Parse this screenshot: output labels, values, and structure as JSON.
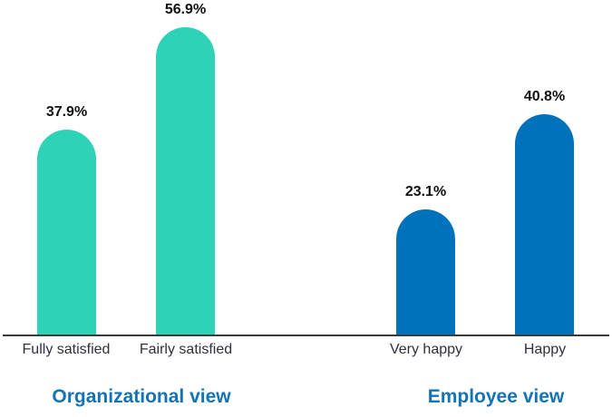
{
  "chart_data": {
    "type": "bar",
    "title": "",
    "categories": [
      "Fully satisfied",
      "Fairly satisfied",
      "Very happy",
      "Happy"
    ],
    "values": [
      37.9,
      56.9,
      23.1,
      40.8
    ],
    "value_labels": [
      "37.9%",
      "56.9%",
      "23.1%",
      "40.8%"
    ],
    "ylim": [
      0,
      60
    ],
    "grid": false,
    "legend": false,
    "axis": "x-baseline-only",
    "bar_style": "rounded-top",
    "groups": [
      {
        "title": "Organizational view",
        "categories": [
          "Fully satisfied",
          "Fairly satisfied"
        ],
        "values": [
          37.9,
          56.9
        ],
        "value_labels": [
          "37.9%",
          "56.9%"
        ],
        "bar_color": "#2ed3b7"
      },
      {
        "title": "Employee view",
        "categories": [
          "Very happy",
          "Happy"
        ],
        "values": [
          23.1,
          40.8
        ],
        "value_labels": [
          "23.1%",
          "40.8%"
        ],
        "bar_color": "#0072bc"
      }
    ]
  },
  "bars": [
    {
      "label": "Fully satisfied",
      "value": 37.9,
      "value_label": "37.9%",
      "group": 0
    },
    {
      "label": "Fairly satisfied",
      "value": 56.9,
      "value_label": "56.9%",
      "group": 0
    },
    {
      "label": "Very happy",
      "value": 23.1,
      "value_label": "23.1%",
      "group": 1
    },
    {
      "label": "Happy",
      "value": 40.8,
      "value_label": "40.8%",
      "group": 1
    }
  ],
  "colors": {
    "teal_bar": "#2ed3b7",
    "blue_bar": "#0072bc",
    "group_title": "#1273b9",
    "category_label": "#30303c",
    "value_label": "#111111",
    "axis_line": "#3a3a3a",
    "background": "#ffffff"
  }
}
